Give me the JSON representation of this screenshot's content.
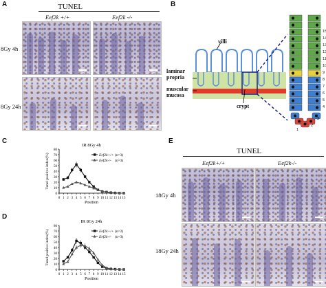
{
  "panel_a": {
    "letter": "A",
    "title": "TUNEL",
    "col_left": "Eef2k +/+",
    "col_right": "Eef2k -/-",
    "row_top": "8Gy 4h",
    "row_bottom": "8Gy 24h"
  },
  "panel_b": {
    "letter": "B",
    "label_villi": "villi",
    "label_laminar": "laminar",
    "label_propria": "propria",
    "label_muscular": "muscular",
    "label_mucosa": "mucosa",
    "label_crypt": "crypt",
    "crypt_numbers": [
      "1",
      "2",
      "3",
      "4",
      "5",
      "6",
      "7",
      "8",
      "9",
      "10",
      "11",
      "12",
      "13",
      "14",
      "15"
    ],
    "colors": {
      "villi": "#5b8fd8",
      "lamina": "#cfe3a4",
      "muscle": "#e23b2a",
      "green_cell": "#5fa84a",
      "blue_cell": "#3e7fd0",
      "red_cell": "#d9463b"
    }
  },
  "panel_c": {
    "letter": "C",
    "chart_data": {
      "type": "line",
      "title": "IR 8Gy 4h",
      "xlabel": "Position",
      "ylabel": "Tunel positive index(%)",
      "x": [
        1,
        2,
        3,
        4,
        5,
        6,
        7,
        8,
        9,
        10,
        11,
        12,
        13,
        14,
        15
      ],
      "ylim": [
        0,
        80
      ],
      "yticks": [
        0,
        10,
        20,
        30,
        40,
        50,
        60,
        70,
        80
      ],
      "xticks": [
        0,
        1,
        2,
        3,
        4,
        5,
        6,
        7,
        8,
        9,
        10,
        11,
        12,
        13,
        14,
        15
      ],
      "series": [
        {
          "name": "Eef2k+/+",
          "n": "(n=3)",
          "marker": "square",
          "values": [
            25,
            28,
            42,
            52,
            42,
            30,
            20,
            12,
            6,
            3,
            2,
            1,
            0.5,
            0,
            0
          ]
        },
        {
          "name": "Eef2k-/-",
          "n": "(n=3)",
          "marker": "triangle",
          "values": [
            10,
            12,
            17,
            20,
            18,
            15,
            12,
            9,
            6,
            3,
            2,
            1,
            0.5,
            0,
            0
          ]
        }
      ]
    }
  },
  "panel_d": {
    "letter": "D",
    "chart_data": {
      "type": "line",
      "title": "IR 8Gy 24h",
      "xlabel": "Position",
      "ylabel": "Tunel positive index(%)",
      "x": [
        1,
        2,
        3,
        4,
        5,
        6,
        7,
        8,
        9,
        10,
        11,
        12,
        13,
        14,
        15
      ],
      "ylim": [
        0,
        80
      ],
      "yticks": [
        0,
        10,
        20,
        30,
        40,
        50,
        60,
        70,
        80
      ],
      "xticks": [
        0,
        1,
        2,
        3,
        4,
        5,
        6,
        7,
        8,
        9,
        10,
        11,
        12,
        13,
        14,
        15
      ],
      "series": [
        {
          "name": "Eef2k+/+",
          "n": "(n=2)",
          "marker": "square",
          "values": [
            15,
            22,
            35,
            52,
            48,
            40,
            32,
            22,
            12,
            5,
            2,
            1,
            0.5,
            0,
            0
          ]
        },
        {
          "name": "Eef2k-/-",
          "n": "(n=3)",
          "marker": "triangle",
          "values": [
            10,
            14,
            28,
            40,
            44,
            43,
            38,
            30,
            18,
            8,
            3,
            1,
            0.5,
            0,
            0
          ]
        }
      ]
    }
  },
  "panel_e": {
    "letter": "E",
    "title": "TUNEL",
    "col_left": "Eef2k+/+",
    "col_right": "Eef2k-/-",
    "row_top": "18Gy 4h",
    "row_bottom": "18Gy 24h"
  }
}
